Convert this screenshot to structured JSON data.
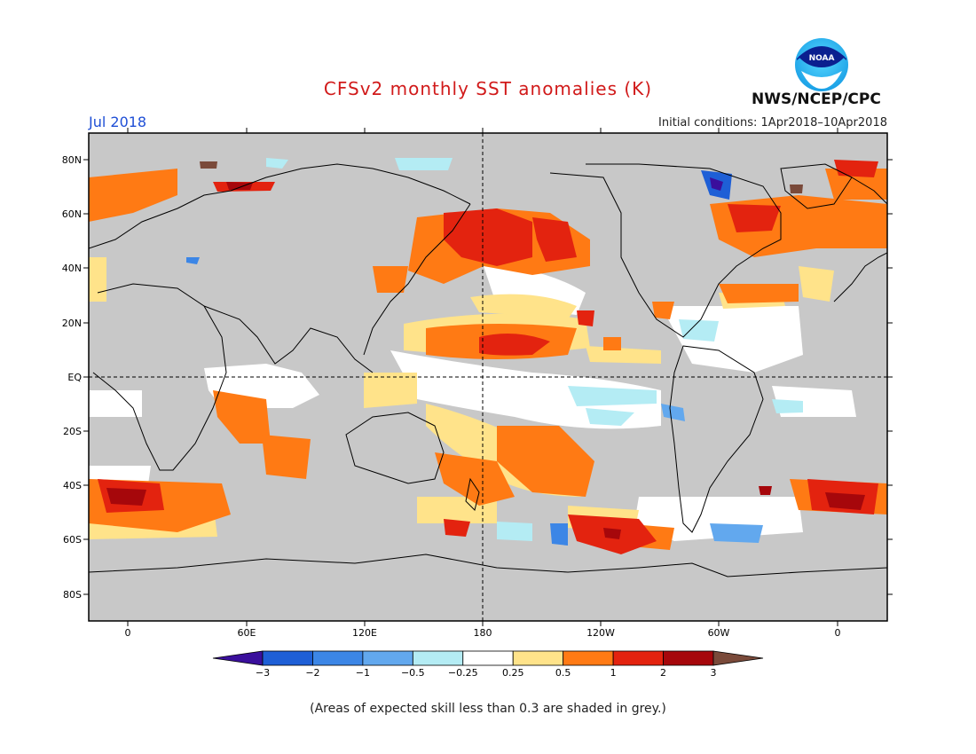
{
  "header": {
    "title": "CFSv2 monthly SST anomalies (K)",
    "agency": "NWS/NCEP/CPC",
    "logo_text": "NOAA",
    "valid_month": "Jul 2018",
    "initial_conditions": "Initial conditions: 1Apr2018–10Apr2018"
  },
  "map": {
    "lat_labels": [
      "80N",
      "60N",
      "40N",
      "20N",
      "EQ",
      "20S",
      "40S",
      "60S",
      "80S"
    ],
    "lon_labels": [
      "0",
      "60E",
      "120E",
      "180",
      "120W",
      "60W",
      "0"
    ],
    "land_color": "#c8c8c8",
    "ocean_color": "#ffffff"
  },
  "colorbar": {
    "labels": [
      "−3",
      "−2",
      "−1",
      "−0.5",
      "−0.25",
      "0.25",
      "0.5",
      "1",
      "2",
      "3"
    ],
    "colors": [
      "#3a0f9c",
      "#1e5fd6",
      "#3c86e6",
      "#62a8ee",
      "#b4ecf4",
      "#ffffff",
      "#ffe38a",
      "#ff7a14",
      "#e3230f",
      "#a6070b",
      "#7a4a3a"
    ]
  },
  "footnote": "(Areas of expected skill less than 0.3 are shaded in grey.)"
}
